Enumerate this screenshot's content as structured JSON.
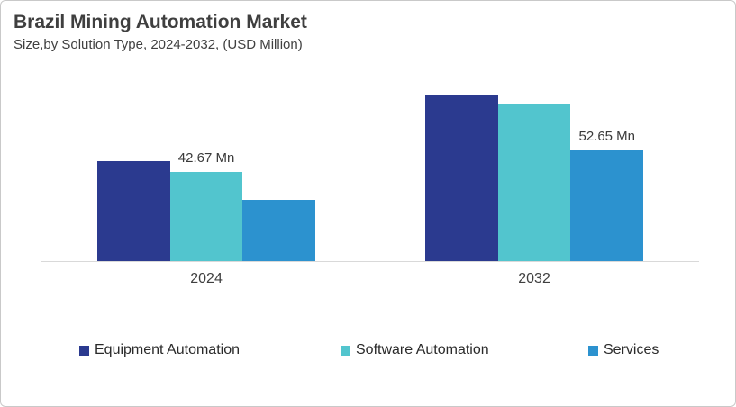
{
  "header": {
    "title": "Brazil Mining Automation Market",
    "subtitle": "Size,by Solution Type, 2024-2032, (USD Million)"
  },
  "colors": {
    "equipment_automation": "#2B3A8F",
    "software_automation": "#52C5CE",
    "services": "#2C92CF",
    "axis_line": "#D9D9D9",
    "text": "#3F3F3F",
    "card_border": "#C9C9C9"
  },
  "chart_data": {
    "type": "bar",
    "title": "Brazil Mining Automation Market",
    "subtitle": "Size,by Solution Type, 2024-2032, (USD Million)",
    "value_unit": "USD Million",
    "categories": [
      "2024",
      "2032"
    ],
    "series": [
      {
        "name": "Equipment Automation",
        "color": "#2B3A8F",
        "values": [
          47.8,
          79.3
        ]
      },
      {
        "name": "Software Automation",
        "color": "#52C5CE",
        "values": [
          42.67,
          74.9
        ]
      },
      {
        "name": "Services",
        "color": "#2C92CF",
        "values": [
          29.0,
          52.65
        ]
      }
    ],
    "data_labels": [
      {
        "category": "2024",
        "series": "Software Automation",
        "series_index": 1,
        "cat_index": 0,
        "text": "42.67 Mn"
      },
      {
        "category": "2032",
        "series": "Services",
        "series_index": 2,
        "cat_index": 1,
        "text": "52.65 Mn"
      }
    ],
    "labeled_values_note": "Only 42.67 Mn (2024 Software Automation) and 52.65 Mn (2032 Services) are labeled; other values estimated from bar heights",
    "ylim": [
      0,
      84
    ],
    "grid": false,
    "y_axis_visible": false,
    "legend_position": "bottom"
  },
  "legend": {
    "items": [
      {
        "label": "Equipment Automation",
        "color": "#2B3A8F"
      },
      {
        "label": "Software Automation",
        "color": "#52C5CE"
      },
      {
        "label": "Services",
        "color": "#2C92CF"
      }
    ]
  }
}
